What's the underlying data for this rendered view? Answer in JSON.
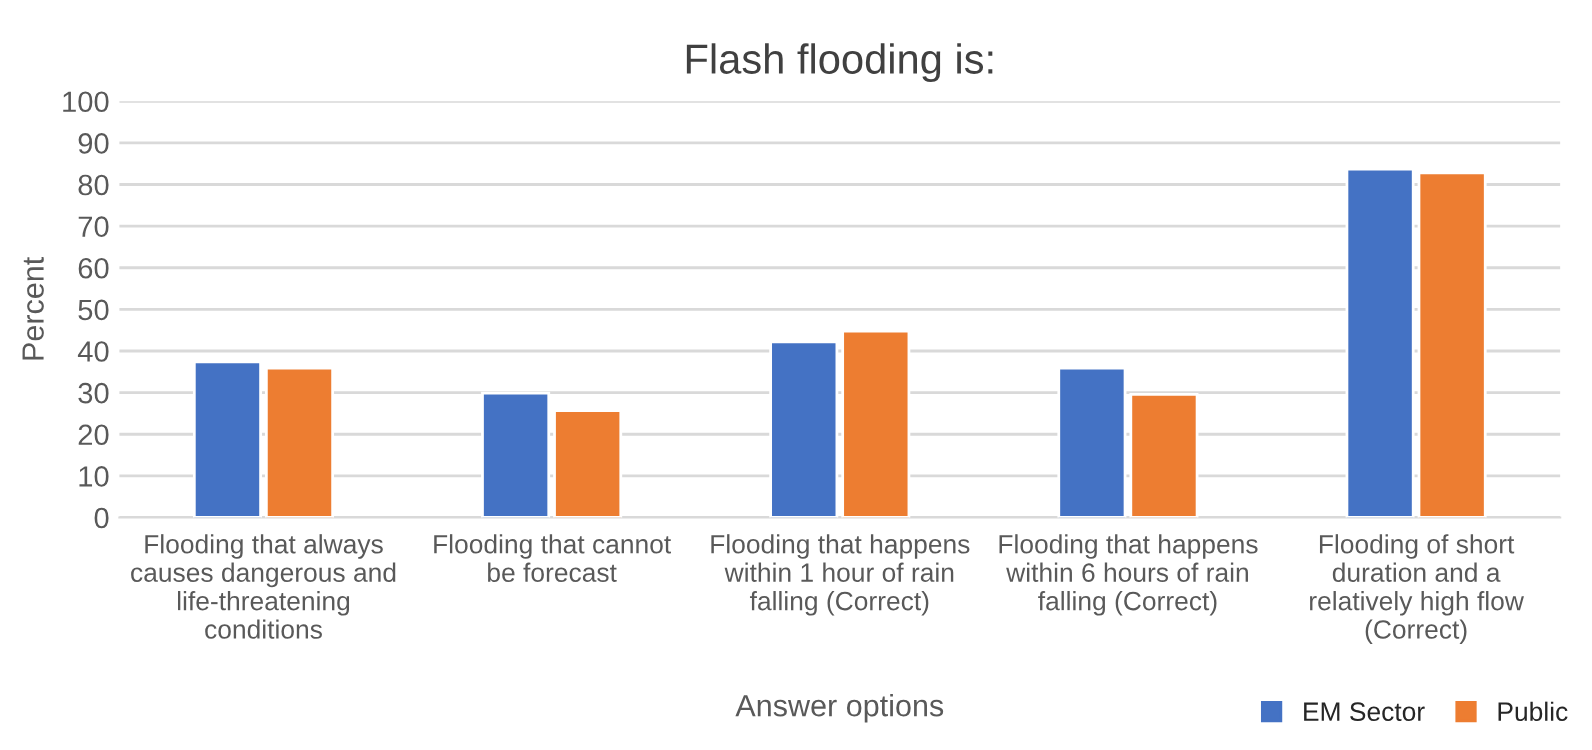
{
  "chart_data": {
    "type": "bar",
    "title": "Flash flooding is:",
    "xlabel": "Answer options",
    "ylabel": "Percent",
    "categories": [
      "Flooding that always\ncauses dangerous and\nlife-threatening\nconditions",
      "Flooding that cannot\nbe forecast",
      "Flooding that happens\nwithin 1 hour of rain\nfalling (Correct)",
      "Flooding that happens\nwithin 6 hours of rain\nfalling (Correct)",
      "Flooding of short\nduration and a\nrelatively high flow\n(Correct)"
    ],
    "series": [
      {
        "name": "EM Sector",
        "color": "#4472c4",
        "values": [
          37.4,
          29.9,
          42.2,
          35.9,
          83.7
        ]
      },
      {
        "name": "Public",
        "color": "#ed7d31",
        "values": [
          35.9,
          25.7,
          44.8,
          29.6,
          82.8
        ]
      }
    ],
    "ylim": [
      0,
      100
    ],
    "yticks": [
      0,
      10,
      20,
      30,
      40,
      50,
      60,
      70,
      80,
      90,
      100
    ],
    "grid": "y",
    "legend": "bottom right"
  }
}
